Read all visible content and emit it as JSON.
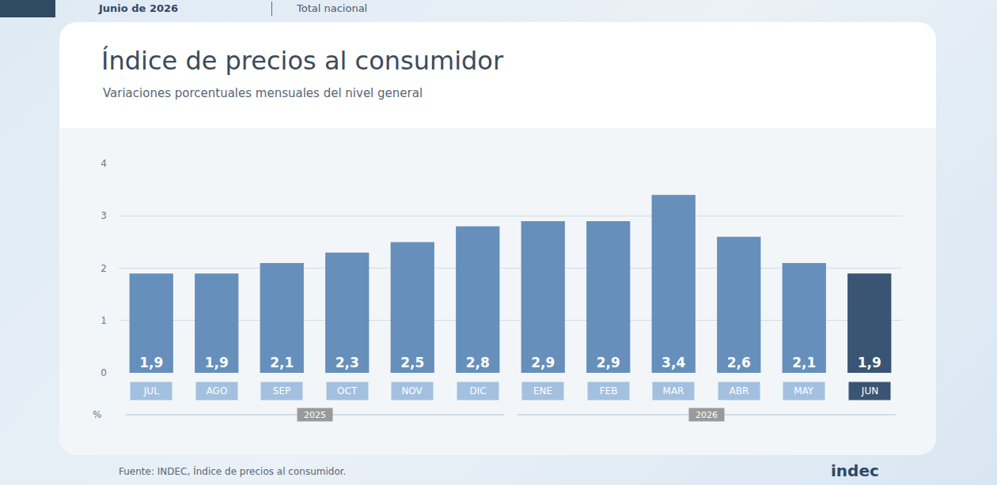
{
  "header": [
    "Junio de 2026",
    "Total nacional"
  ],
  "chart_data": {
    "type": "bar",
    "title": "Índice de precios al consumidor",
    "subtitle": "Variaciones porcentuales mensuales del nivel general",
    "categories": [
      "JUL",
      "AGO",
      "SEP",
      "OCT",
      "NOV",
      "DIC",
      "ENE",
      "FEB",
      "MAR",
      "ABR",
      "MAY",
      "JUN"
    ],
    "values": [
      1.9,
      1.9,
      2.1,
      2.3,
      2.5,
      2.8,
      2.9,
      2.9,
      3.4,
      2.6,
      2.1,
      1.9
    ],
    "value_labels": [
      "1,9",
      "1,9",
      "2,1",
      "2,3",
      "2,5",
      "2,8",
      "2,9",
      "2,9",
      "3,4",
      "2,6",
      "2,1",
      "1,9"
    ],
    "colors": [
      "#6690bb",
      "#6690bb",
      "#6690bb",
      "#6690bb",
      "#6690bb",
      "#6690bb",
      "#6690bb",
      "#6690bb",
      "#6690bb",
      "#6690bb",
      "#6690bb",
      "#3a5573"
    ],
    "groups": [
      {
        "label": "2025",
        "categories": [
          "JUL",
          "AGO",
          "SEP",
          "OCT",
          "NOV",
          "DIC"
        ]
      },
      {
        "label": "2026",
        "categories": [
          "ENE",
          "FEB",
          "MAR",
          "ABR",
          "MAY",
          "JUN"
        ]
      }
    ],
    "y_label": "%",
    "ylim": [
      0,
      4
    ],
    "yticks": [
      0,
      1,
      2,
      3,
      4
    ],
    "grid": true,
    "data_labels": true
  },
  "source": "Fuente: INDEC, Índice de precios al consumidor.",
  "logo": "indec"
}
